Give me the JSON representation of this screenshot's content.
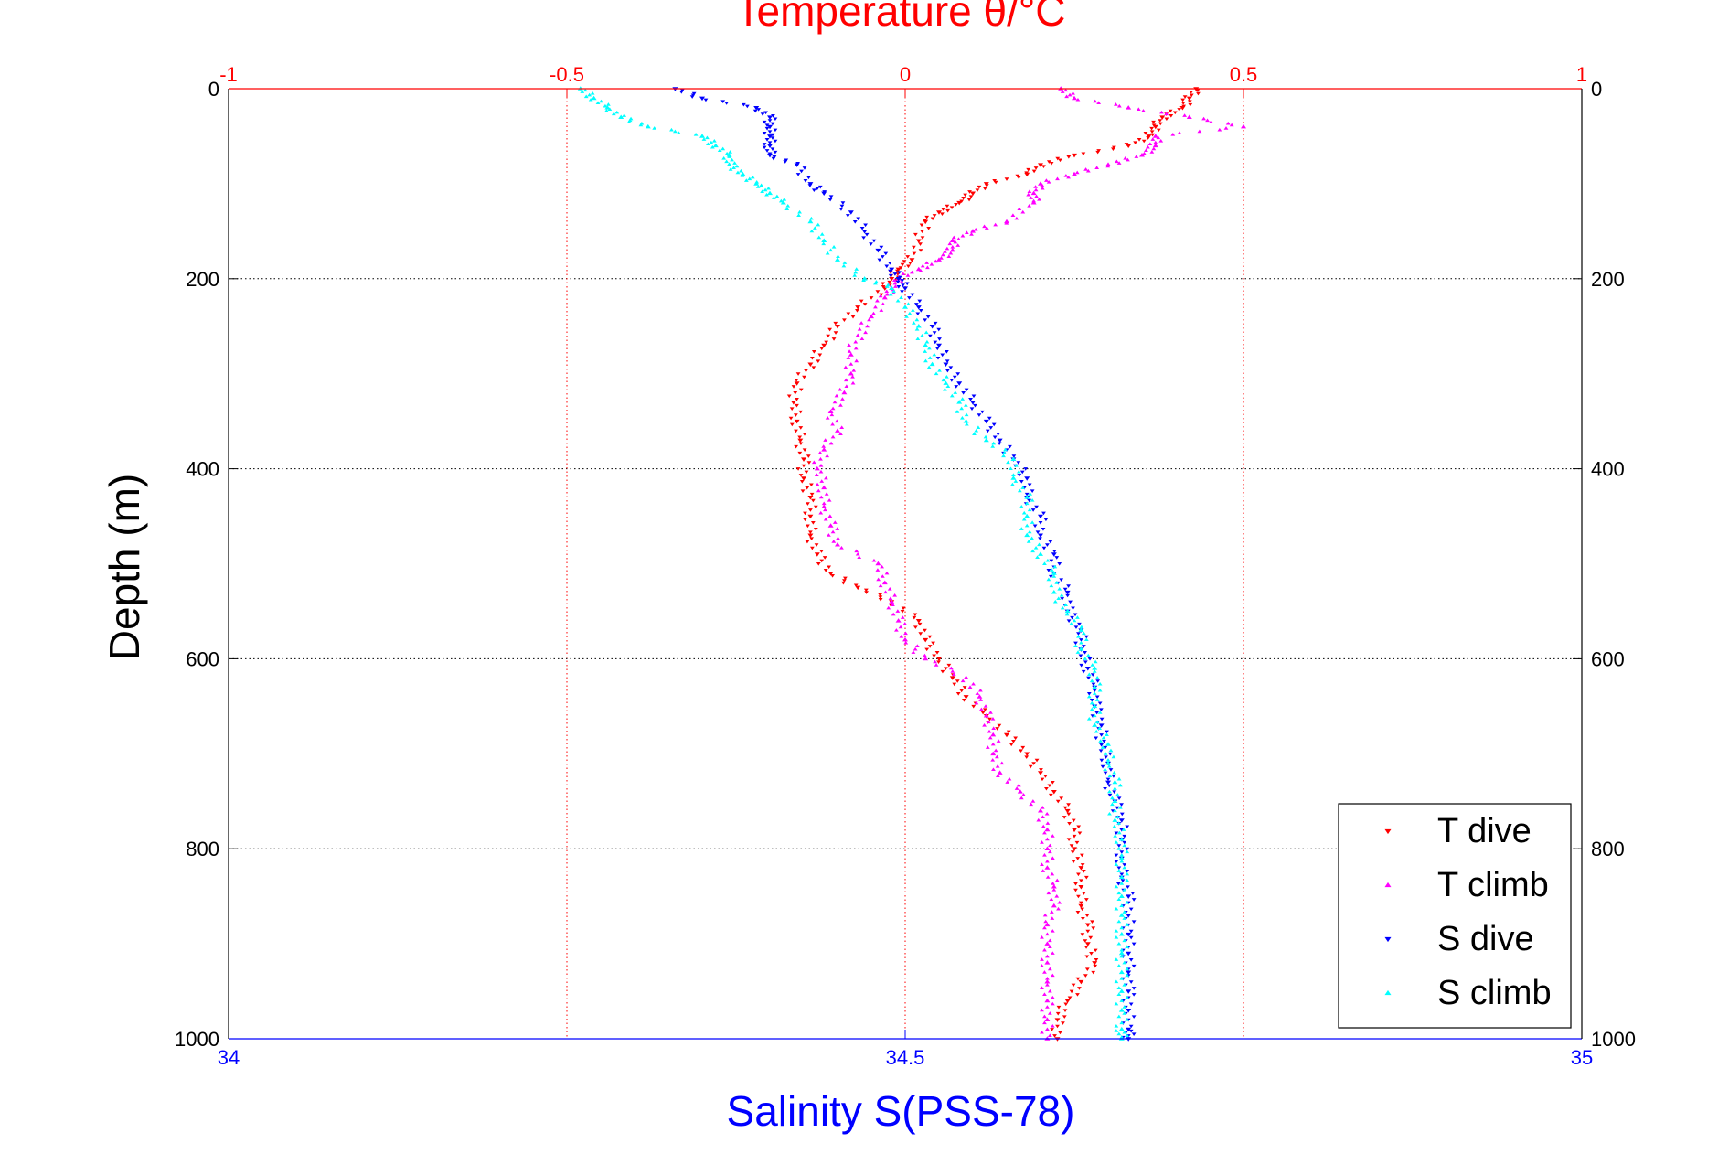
{
  "chart_data": {
    "type": "scatter",
    "title": "Temperature θ/°C",
    "ylabel": "Depth (m)",
    "xlabel": "Salinity S(PSS-78)",
    "ylim": [
      1000,
      0
    ],
    "y_ticks": [
      0,
      200,
      400,
      600,
      800,
      1000
    ],
    "x_top": {
      "label": "Temperature θ/°C",
      "range": [
        -1,
        1
      ],
      "ticks": [
        -1,
        -0.5,
        0,
        0.5,
        1
      ],
      "tick_labels": [
        "-1",
        "-0.5",
        "0",
        "0.5",
        "1"
      ]
    },
    "x_bottom": {
      "label": "Salinity S(PSS-78)",
      "range": [
        34,
        35
      ],
      "ticks": [
        34,
        34.5,
        35
      ],
      "tick_labels": [
        "34",
        "34.5",
        "35"
      ]
    },
    "legend_position": "bottom-right",
    "colors": {
      "top_axis": "#ff0000",
      "bottom_axis": "#0000ff",
      "grid": "#000000"
    },
    "series": [
      {
        "name": "T dive",
        "axis": "top",
        "marker": "triangle-down",
        "color": "#ff0000",
        "points": [
          [
            0.43,
            0
          ],
          [
            0.42,
            10
          ],
          [
            0.41,
            20
          ],
          [
            0.38,
            30
          ],
          [
            0.37,
            40
          ],
          [
            0.36,
            50
          ],
          [
            0.33,
            60
          ],
          [
            0.25,
            70
          ],
          [
            0.2,
            80
          ],
          [
            0.18,
            90
          ],
          [
            0.12,
            100
          ],
          [
            0.1,
            110
          ],
          [
            0.08,
            120
          ],
          [
            0.05,
            130
          ],
          [
            0.03,
            140
          ],
          [
            0.02,
            160
          ],
          [
            0.01,
            180
          ],
          [
            -0.01,
            190
          ],
          [
            -0.02,
            200
          ],
          [
            -0.03,
            210
          ],
          [
            -0.07,
            230
          ],
          [
            -0.1,
            250
          ],
          [
            -0.12,
            270
          ],
          [
            -0.14,
            290
          ],
          [
            -0.16,
            310
          ],
          [
            -0.165,
            330
          ],
          [
            -0.16,
            350
          ],
          [
            -0.155,
            370
          ],
          [
            -0.15,
            390
          ],
          [
            -0.15,
            410
          ],
          [
            -0.14,
            430
          ],
          [
            -0.14,
            450
          ],
          [
            -0.14,
            470
          ],
          [
            -0.13,
            490
          ],
          [
            -0.11,
            510
          ],
          [
            -0.07,
            525
          ],
          [
            -0.02,
            540
          ],
          [
            0.02,
            560
          ],
          [
            0.03,
            580
          ],
          [
            0.05,
            600
          ],
          [
            0.07,
            620
          ],
          [
            0.09,
            640
          ],
          [
            0.12,
            660
          ],
          [
            0.15,
            680
          ],
          [
            0.18,
            700
          ],
          [
            0.2,
            720
          ],
          [
            0.22,
            740
          ],
          [
            0.24,
            760
          ],
          [
            0.25,
            780
          ],
          [
            0.25,
            800
          ],
          [
            0.26,
            820
          ],
          [
            0.26,
            840
          ],
          [
            0.26,
            860
          ],
          [
            0.27,
            880
          ],
          [
            0.27,
            900
          ],
          [
            0.28,
            920
          ],
          [
            0.26,
            940
          ],
          [
            0.24,
            960
          ],
          [
            0.225,
            980
          ],
          [
            0.225,
            1000
          ]
        ]
      },
      {
        "name": "T climb",
        "axis": "top",
        "marker": "triangle-up",
        "color": "#ff00ff",
        "points": [
          [
            0.23,
            0
          ],
          [
            0.25,
            10
          ],
          [
            0.33,
            20
          ],
          [
            0.42,
            30
          ],
          [
            0.5,
            40
          ],
          [
            0.37,
            50
          ],
          [
            0.37,
            60
          ],
          [
            0.35,
            70
          ],
          [
            0.3,
            80
          ],
          [
            0.25,
            90
          ],
          [
            0.2,
            100
          ],
          [
            0.19,
            110
          ],
          [
            0.19,
            120
          ],
          [
            0.15,
            140
          ],
          [
            0.1,
            150
          ],
          [
            0.07,
            160
          ],
          [
            0.07,
            170
          ],
          [
            0.05,
            180
          ],
          [
            0.02,
            190
          ],
          [
            -0.01,
            200
          ],
          [
            -0.02,
            210
          ],
          [
            -0.03,
            220
          ],
          [
            -0.05,
            240
          ],
          [
            -0.07,
            260
          ],
          [
            -0.08,
            280
          ],
          [
            -0.08,
            300
          ],
          [
            -0.09,
            320
          ],
          [
            -0.11,
            340
          ],
          [
            -0.1,
            360
          ],
          [
            -0.12,
            380
          ],
          [
            -0.13,
            400
          ],
          [
            -0.12,
            420
          ],
          [
            -0.12,
            440
          ],
          [
            -0.11,
            460
          ],
          [
            -0.1,
            480
          ],
          [
            -0.04,
            500
          ],
          [
            -0.03,
            520
          ],
          [
            -0.02,
            540
          ],
          [
            -0.01,
            560
          ],
          [
            0.0,
            580
          ],
          [
            0.03,
            600
          ],
          [
            0.09,
            620
          ],
          [
            0.11,
            640
          ],
          [
            0.12,
            660
          ],
          [
            0.13,
            680
          ],
          [
            0.13,
            700
          ],
          [
            0.14,
            720
          ],
          [
            0.17,
            740
          ],
          [
            0.2,
            760
          ],
          [
            0.21,
            780
          ],
          [
            0.21,
            800
          ],
          [
            0.21,
            820
          ],
          [
            0.22,
            840
          ],
          [
            0.22,
            860
          ],
          [
            0.21,
            880
          ],
          [
            0.21,
            900
          ],
          [
            0.21,
            920
          ],
          [
            0.21,
            940
          ],
          [
            0.21,
            960
          ],
          [
            0.21,
            980
          ],
          [
            0.21,
            1000
          ]
        ]
      },
      {
        "name": "S dive",
        "axis": "bottom",
        "marker": "triangle-down",
        "color": "#0000ff",
        "points": [
          [
            34.33,
            0
          ],
          [
            34.35,
            10
          ],
          [
            34.39,
            20
          ],
          [
            34.4,
            30
          ],
          [
            34.4,
            40
          ],
          [
            34.4,
            50
          ],
          [
            34.4,
            60
          ],
          [
            34.4,
            70
          ],
          [
            34.42,
            80
          ],
          [
            34.43,
            100
          ],
          [
            34.44,
            110
          ],
          [
            34.46,
            130
          ],
          [
            34.47,
            150
          ],
          [
            34.48,
            170
          ],
          [
            34.49,
            190
          ],
          [
            34.495,
            200
          ],
          [
            34.5,
            210
          ],
          [
            34.51,
            230
          ],
          [
            34.52,
            250
          ],
          [
            34.525,
            270
          ],
          [
            34.53,
            290
          ],
          [
            34.54,
            310
          ],
          [
            34.55,
            330
          ],
          [
            34.56,
            350
          ],
          [
            34.57,
            370
          ],
          [
            34.58,
            390
          ],
          [
            34.59,
            410
          ],
          [
            34.59,
            430
          ],
          [
            34.6,
            450
          ],
          [
            34.6,
            470
          ],
          [
            34.61,
            490
          ],
          [
            34.61,
            510
          ],
          [
            34.62,
            530
          ],
          [
            34.62,
            550
          ],
          [
            34.63,
            570
          ],
          [
            34.63,
            590
          ],
          [
            34.635,
            610
          ],
          [
            34.64,
            630
          ],
          [
            34.64,
            650
          ],
          [
            34.645,
            670
          ],
          [
            34.645,
            690
          ],
          [
            34.65,
            710
          ],
          [
            34.65,
            730
          ],
          [
            34.655,
            750
          ],
          [
            34.66,
            770
          ],
          [
            34.66,
            790
          ],
          [
            34.66,
            810
          ],
          [
            34.66,
            830
          ],
          [
            34.665,
            850
          ],
          [
            34.665,
            870
          ],
          [
            34.665,
            890
          ],
          [
            34.665,
            910
          ],
          [
            34.665,
            930
          ],
          [
            34.665,
            950
          ],
          [
            34.665,
            970
          ],
          [
            34.665,
            990
          ],
          [
            34.665,
            1000
          ]
        ]
      },
      {
        "name": "S climb",
        "axis": "bottom",
        "marker": "triangle-up",
        "color": "#00ffff",
        "points": [
          [
            34.26,
            0
          ],
          [
            34.27,
            10
          ],
          [
            34.28,
            20
          ],
          [
            34.29,
            30
          ],
          [
            34.31,
            40
          ],
          [
            34.35,
            50
          ],
          [
            34.36,
            60
          ],
          [
            34.37,
            70
          ],
          [
            34.37,
            80
          ],
          [
            34.38,
            90
          ],
          [
            34.39,
            100
          ],
          [
            34.4,
            110
          ],
          [
            34.41,
            120
          ],
          [
            34.43,
            140
          ],
          [
            34.44,
            160
          ],
          [
            34.45,
            180
          ],
          [
            34.47,
            200
          ],
          [
            34.49,
            210
          ],
          [
            34.5,
            230
          ],
          [
            34.51,
            250
          ],
          [
            34.515,
            270
          ],
          [
            34.52,
            290
          ],
          [
            34.53,
            310
          ],
          [
            34.54,
            330
          ],
          [
            34.545,
            350
          ],
          [
            34.56,
            370
          ],
          [
            34.58,
            390
          ],
          [
            34.58,
            410
          ],
          [
            34.59,
            430
          ],
          [
            34.59,
            450
          ],
          [
            34.59,
            470
          ],
          [
            34.6,
            490
          ],
          [
            34.61,
            510
          ],
          [
            34.61,
            530
          ],
          [
            34.62,
            550
          ],
          [
            34.63,
            570
          ],
          [
            34.63,
            590
          ],
          [
            34.64,
            610
          ],
          [
            34.64,
            630
          ],
          [
            34.64,
            650
          ],
          [
            34.64,
            670
          ],
          [
            34.65,
            690
          ],
          [
            34.65,
            710
          ],
          [
            34.655,
            730
          ],
          [
            34.655,
            750
          ],
          [
            34.655,
            770
          ],
          [
            34.66,
            790
          ],
          [
            34.66,
            810
          ],
          [
            34.66,
            830
          ],
          [
            34.66,
            850
          ],
          [
            34.66,
            870
          ],
          [
            34.66,
            890
          ],
          [
            34.66,
            910
          ],
          [
            34.66,
            930
          ],
          [
            34.66,
            950
          ],
          [
            34.66,
            970
          ],
          [
            34.66,
            990
          ],
          [
            34.66,
            1000
          ]
        ]
      }
    ]
  }
}
